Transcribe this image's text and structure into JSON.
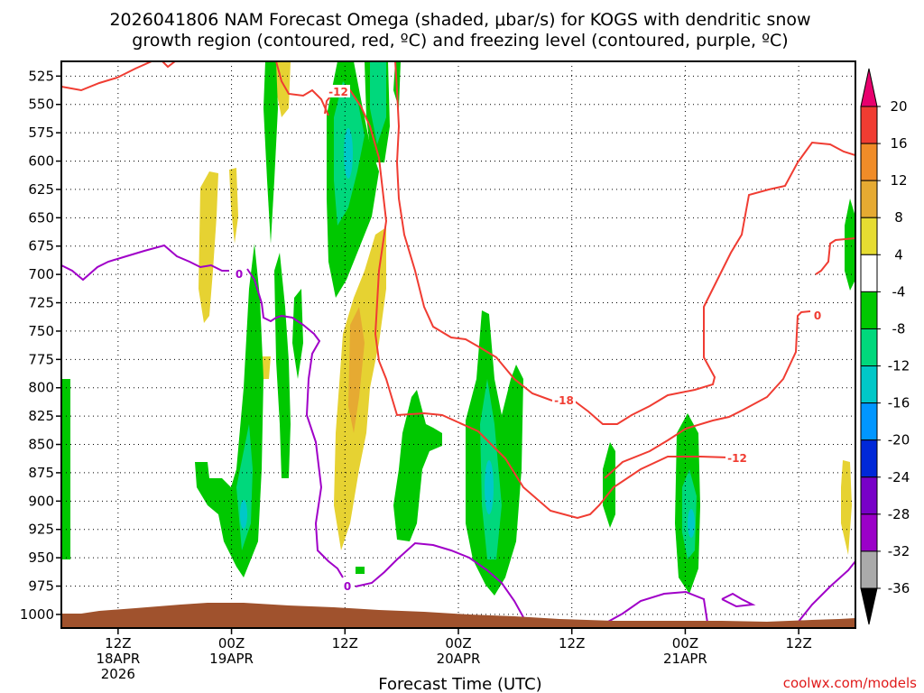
{
  "chart_data": {
    "type": "heatmap",
    "title_lines": [
      "2026041806 NAM Forecast Omega (shaded, μbar/s) for KOGS with dendritic snow",
      "growth region (contoured, red, ºC) and freezing level (contoured, purple, ºC)"
    ],
    "xlabel": "Forecast Time (UTC)",
    "x_ticks": [
      {
        "hour": 12,
        "lines": [
          "12Z",
          "18APR",
          "2026"
        ]
      },
      {
        "hour": 24,
        "lines": [
          "00Z",
          "19APR"
        ]
      },
      {
        "hour": 36,
        "lines": [
          "12Z"
        ]
      },
      {
        "hour": 48,
        "lines": [
          "00Z",
          "20APR"
        ]
      },
      {
        "hour": 60,
        "lines": [
          "12Z"
        ]
      },
      {
        "hour": 72,
        "lines": [
          "00Z",
          "21APR"
        ]
      },
      {
        "hour": 84,
        "lines": [
          "12Z"
        ]
      }
    ],
    "x_range": [
      6,
      90
    ],
    "y_ticks": [
      525,
      550,
      575,
      600,
      625,
      650,
      675,
      700,
      725,
      750,
      775,
      800,
      825,
      850,
      875,
      900,
      925,
      950,
      975,
      1000
    ],
    "y_range": [
      512,
      1012
    ],
    "grid": true,
    "colorbar": {
      "labels": [
        "20",
        "16",
        "12",
        "8",
        "4",
        "-4",
        "-8",
        "-12",
        "-16",
        "-20",
        "-24",
        "-28",
        "-32",
        "-36"
      ],
      "colors": [
        "#e8006e",
        "#f03c32",
        "#f08c28",
        "#e6aa32",
        "#e6dc32",
        "#ffffff",
        "#00c800",
        "#00d87c",
        "#00c8c8",
        "#0096ff",
        "#0028d8",
        "#7800c8",
        "#9b00c8",
        "#aaaaaa",
        "#000000"
      ]
    },
    "contour_labels": {
      "red_top": "-12",
      "red_mid": "-18",
      "red_right": "-12",
      "red_far_right": "0",
      "purple_left": "0",
      "purple_bottom": "0"
    },
    "series": [
      {
        "name": "dendritic snow growth region",
        "color": "#f03c32"
      },
      {
        "name": "freezing level",
        "color": "#a000c8"
      },
      {
        "name": "omega ascent",
        "color": "#00c800"
      },
      {
        "name": "omega descent",
        "color": "#e6d232"
      },
      {
        "name": "terrain",
        "color": "#a0522d"
      }
    ]
  },
  "credit": "coolwx.com/models"
}
